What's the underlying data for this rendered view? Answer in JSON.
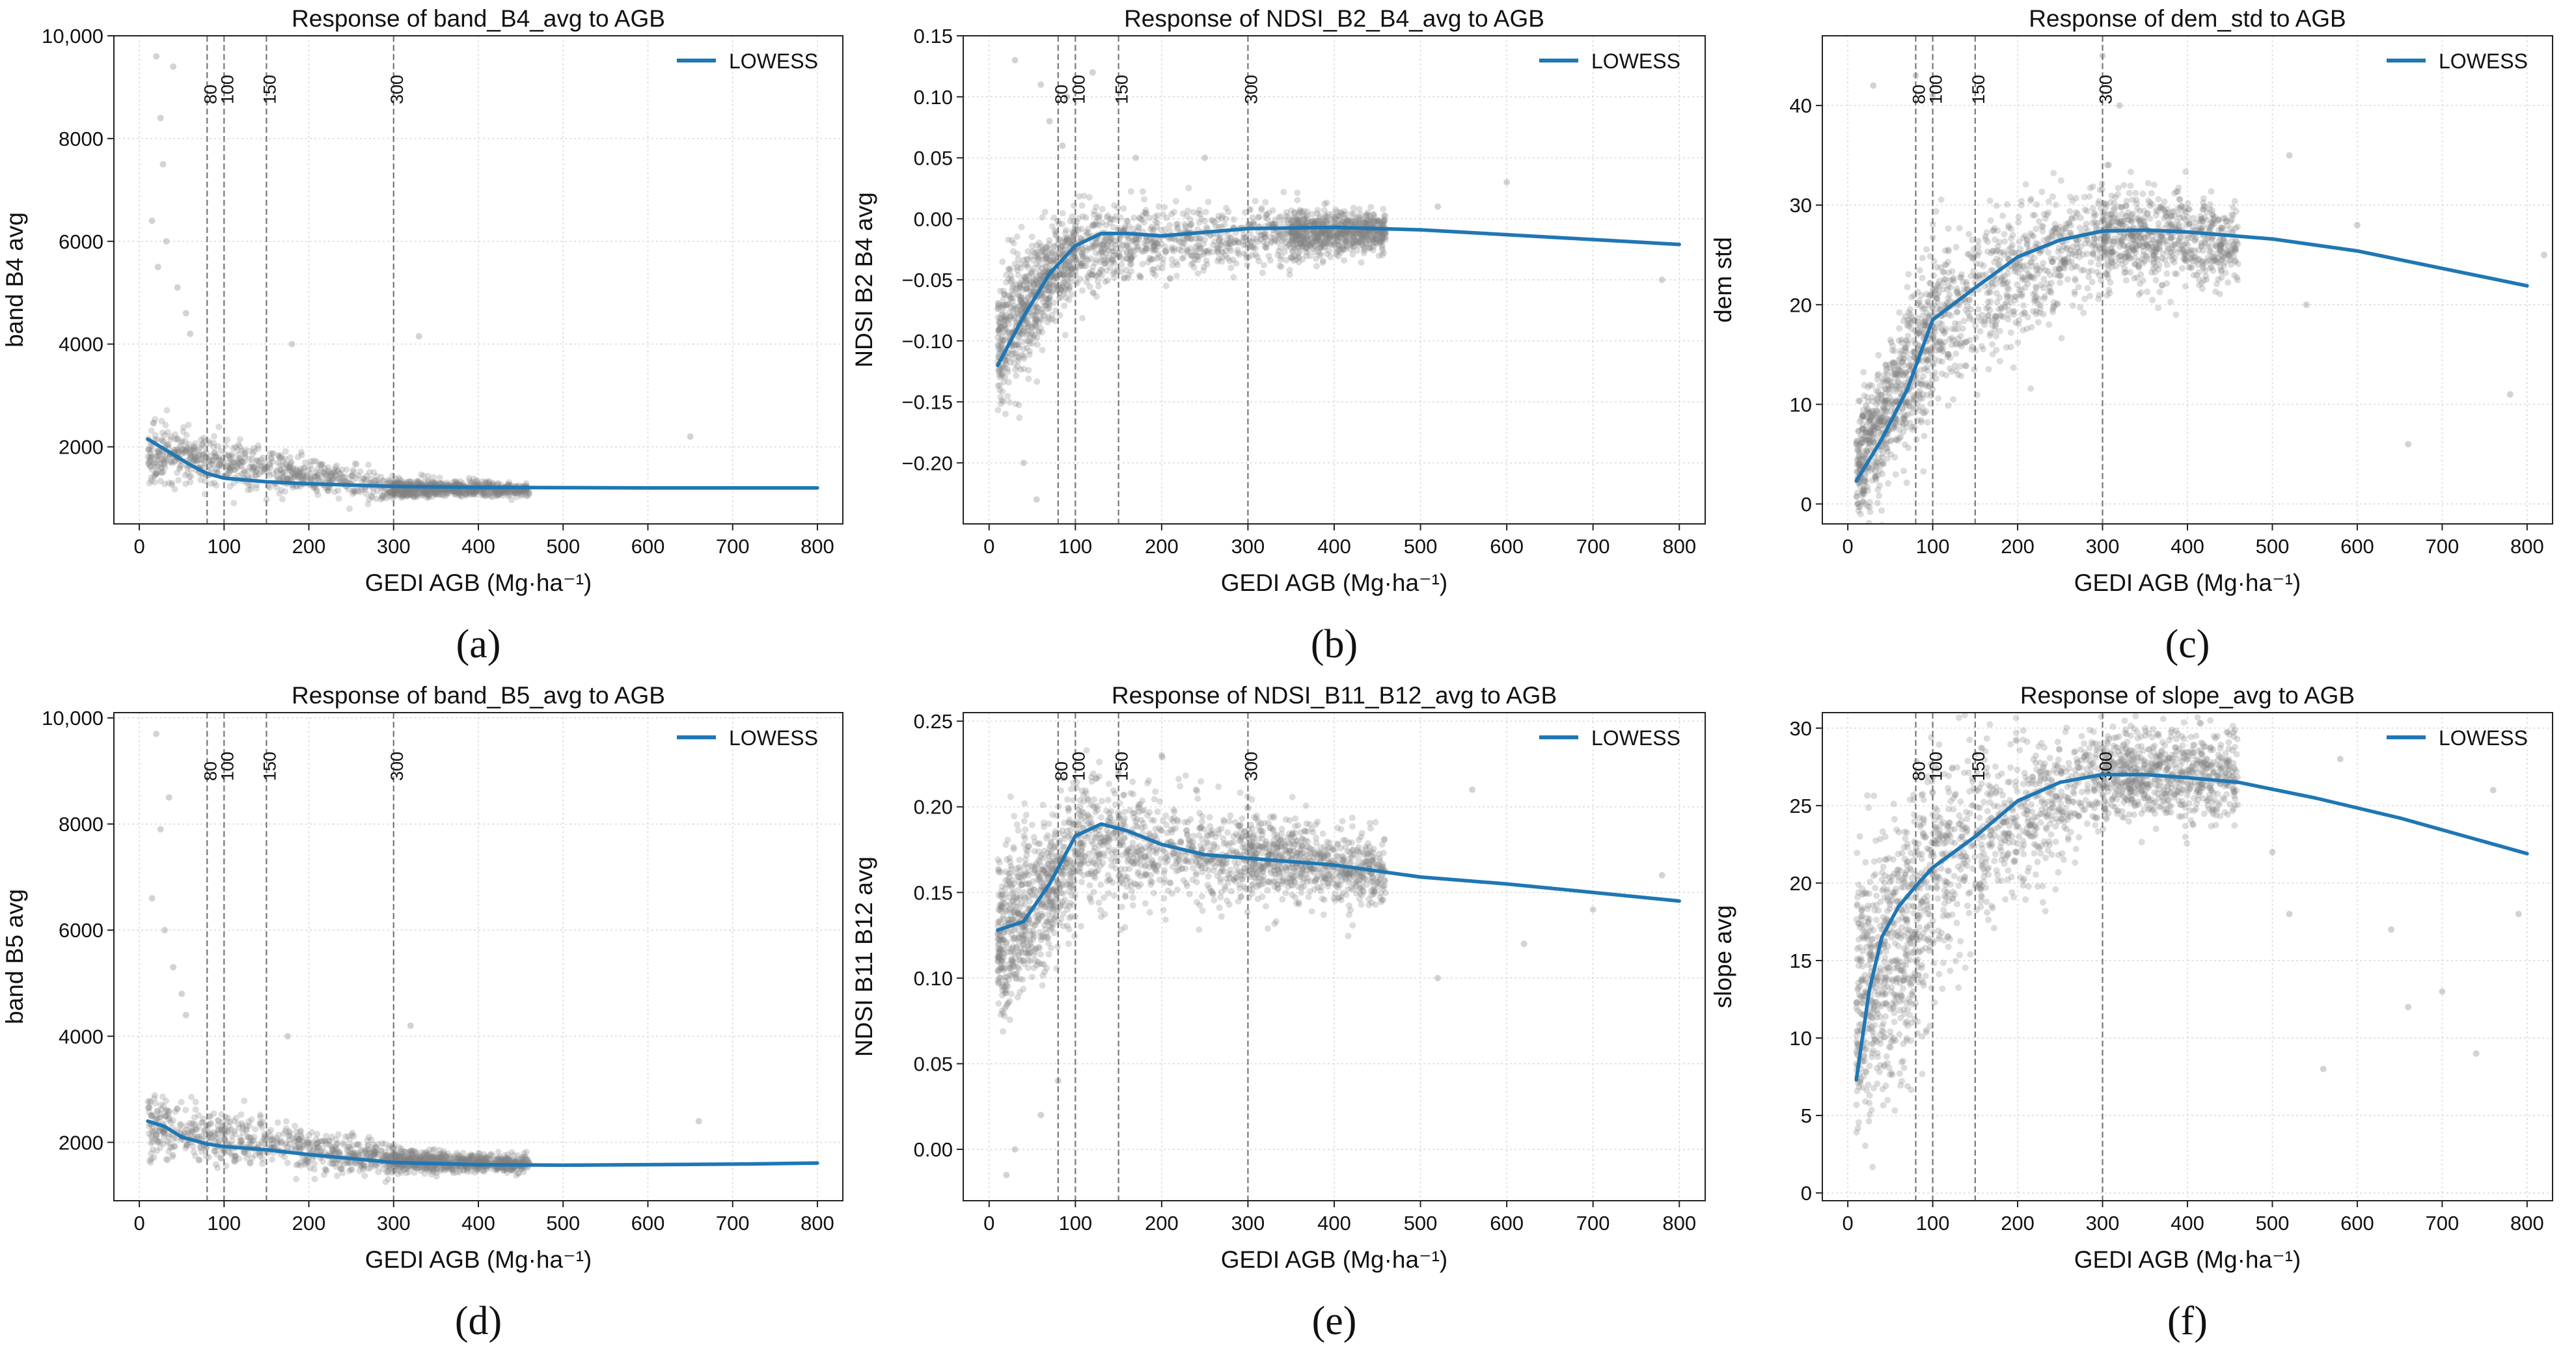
{
  "colors": {
    "points": "#808080",
    "lowess": "#1f77b4",
    "grid": "#d9d9d9",
    "vline": "#777777",
    "axis": "#222222"
  },
  "chart_data": [
    {
      "id": "a",
      "type": "scatter",
      "subfig_label": "(a)",
      "title": "Response of band_B4_avg to AGB",
      "xlabel": "GEDI AGB (Mg·ha⁻¹)",
      "ylabel": "band B4 avg",
      "xlim": [
        -30,
        830
      ],
      "ylim": [
        500,
        10000
      ],
      "xticks": [
        0,
        100,
        200,
        300,
        400,
        500,
        600,
        700,
        800
      ],
      "xtick_labels": [
        "0",
        "100",
        "200",
        "300",
        "400",
        "500",
        "600",
        "700",
        "800"
      ],
      "yticks": [
        2000,
        4000,
        6000,
        8000,
        10000
      ],
      "ytick_labels": [
        "2000",
        "4000",
        "6000",
        "8000",
        "10,000"
      ],
      "grid": true,
      "legend": {
        "position": "top-right",
        "entries": [
          "LOWESS"
        ]
      },
      "reference_lines": {
        "x": [
          80,
          100,
          150,
          300
        ],
        "labels": [
          "80",
          "100",
          "150",
          "300"
        ]
      },
      "lowess": {
        "x": [
          10,
          30,
          60,
          80,
          100,
          150,
          200,
          300,
          400,
          600,
          800
        ],
        "y": [
          2150,
          1950,
          1650,
          1480,
          1390,
          1320,
          1280,
          1230,
          1210,
          1200,
          1200
        ]
      },
      "point_cloud": [
        {
          "x_range": [
            10,
            300
          ],
          "y_center": [
            1900,
            1200
          ],
          "y_spread": [
            550,
            250
          ]
        },
        {
          "x_range": [
            300,
            460
          ],
          "y_center": [
            1200,
            1160
          ],
          "y_spread": [
            180,
            120
          ]
        }
      ],
      "outliers": [
        [
          20,
          9600
        ],
        [
          40,
          9400
        ],
        [
          25,
          8400
        ],
        [
          28,
          7500
        ],
        [
          15,
          6400
        ],
        [
          32,
          6000
        ],
        [
          22,
          5500
        ],
        [
          45,
          5100
        ],
        [
          55,
          4600
        ],
        [
          60,
          4200
        ],
        [
          180,
          4000
        ],
        [
          330,
          4150
        ],
        [
          650,
          2200
        ]
      ]
    },
    {
      "id": "b",
      "type": "scatter",
      "subfig_label": "(b)",
      "title": "Response of NDSI_B2_B4_avg to AGB",
      "xlabel": "GEDI AGB (Mg·ha⁻¹)",
      "ylabel": "NDSI B2 B4 avg",
      "xlim": [
        -30,
        830
      ],
      "ylim": [
        -0.25,
        0.15
      ],
      "xticks": [
        0,
        100,
        200,
        300,
        400,
        500,
        600,
        700,
        800
      ],
      "xtick_labels": [
        "0",
        "100",
        "200",
        "300",
        "400",
        "500",
        "600",
        "700",
        "800"
      ],
      "yticks": [
        -0.2,
        -0.15,
        -0.1,
        -0.05,
        0.0,
        0.05,
        0.1,
        0.15
      ],
      "ytick_labels": [
        "−0.20",
        "−0.15",
        "−0.10",
        "−0.05",
        "0.00",
        "0.05",
        "0.10",
        "0.15"
      ],
      "grid": true,
      "legend": {
        "position": "top-right",
        "entries": [
          "LOWESS"
        ]
      },
      "reference_lines": {
        "x": [
          80,
          100,
          150,
          300
        ],
        "labels": [
          "80",
          "100",
          "150",
          "300"
        ]
      },
      "lowess": {
        "x": [
          10,
          40,
          70,
          100,
          130,
          160,
          200,
          250,
          300,
          400,
          500,
          800
        ],
        "y": [
          -0.12,
          -0.08,
          -0.045,
          -0.022,
          -0.012,
          -0.012,
          -0.014,
          -0.011,
          -0.008,
          -0.007,
          -0.009,
          -0.021
        ]
      },
      "point_cloud": [
        {
          "x_range": [
            10,
            100
          ],
          "y_center": [
            -0.1,
            -0.025
          ],
          "y_spread": [
            0.06,
            0.035
          ]
        },
        {
          "x_range": [
            100,
            350
          ],
          "y_center": [
            -0.025,
            -0.012
          ],
          "y_spread": [
            0.035,
            0.025
          ]
        },
        {
          "x_range": [
            350,
            460
          ],
          "y_center": [
            -0.012,
            -0.01
          ],
          "y_spread": [
            0.02,
            0.015
          ]
        }
      ],
      "outliers": [
        [
          30,
          0.13
        ],
        [
          60,
          0.11
        ],
        [
          90,
          0.1
        ],
        [
          120,
          0.12
        ],
        [
          70,
          0.08
        ],
        [
          85,
          0.06
        ],
        [
          170,
          0.05
        ],
        [
          250,
          0.05
        ],
        [
          40,
          -0.2
        ],
        [
          55,
          -0.23
        ],
        [
          520,
          0.01
        ],
        [
          600,
          0.03
        ],
        [
          780,
          -0.05
        ]
      ]
    },
    {
      "id": "c",
      "type": "scatter",
      "subfig_label": "(c)",
      "title": "Response of dem_std to AGB",
      "xlabel": "GEDI AGB (Mg·ha⁻¹)",
      "ylabel": "dem std",
      "xlim": [
        -30,
        830
      ],
      "ylim": [
        -2,
        47
      ],
      "xticks": [
        0,
        100,
        200,
        300,
        400,
        500,
        600,
        700,
        800
      ],
      "xtick_labels": [
        "0",
        "100",
        "200",
        "300",
        "400",
        "500",
        "600",
        "700",
        "800"
      ],
      "yticks": [
        0,
        10,
        20,
        30,
        40
      ],
      "ytick_labels": [
        "0",
        "10",
        "20",
        "30",
        "40"
      ],
      "grid": true,
      "legend": {
        "position": "top-right",
        "entries": [
          "LOWESS"
        ]
      },
      "reference_lines": {
        "x": [
          80,
          100,
          150,
          300
        ],
        "labels": [
          "80",
          "100",
          "150",
          "300"
        ]
      },
      "lowess": {
        "x": [
          10,
          40,
          70,
          100,
          150,
          200,
          250,
          300,
          350,
          400,
          500,
          600,
          800
        ],
        "y": [
          2.3,
          6.5,
          11.5,
          18.5,
          21.7,
          24.8,
          26.5,
          27.4,
          27.5,
          27.3,
          26.6,
          25.4,
          21.9
        ]
      },
      "point_cloud": [
        {
          "x_range": [
            10,
            100
          ],
          "y_center": [
            4,
            17
          ],
          "y_spread": [
            5,
            9
          ]
        },
        {
          "x_range": [
            100,
            300
          ],
          "y_center": [
            19,
            27
          ],
          "y_spread": [
            9,
            5
          ]
        },
        {
          "x_range": [
            300,
            460
          ],
          "y_center": [
            27,
            26
          ],
          "y_spread": [
            5,
            4
          ]
        }
      ],
      "outliers": [
        [
          30,
          42
        ],
        [
          80,
          43
        ],
        [
          100,
          41
        ],
        [
          300,
          45
        ],
        [
          320,
          40
        ],
        [
          520,
          35
        ],
        [
          540,
          20
        ],
        [
          600,
          28
        ],
        [
          660,
          6
        ],
        [
          780,
          11
        ],
        [
          820,
          25
        ]
      ]
    },
    {
      "id": "d",
      "type": "scatter",
      "subfig_label": "(d)",
      "title": "Response of band_B5_avg to AGB",
      "xlabel": "GEDI AGB (Mg·ha⁻¹)",
      "ylabel": "band B5 avg",
      "xlim": [
        -30,
        830
      ],
      "ylim": [
        900,
        10100
      ],
      "xticks": [
        0,
        100,
        200,
        300,
        400,
        500,
        600,
        700,
        800
      ],
      "xtick_labels": [
        "0",
        "100",
        "200",
        "300",
        "400",
        "500",
        "600",
        "700",
        "800"
      ],
      "yticks": [
        2000,
        4000,
        6000,
        8000,
        10000
      ],
      "ytick_labels": [
        "2000",
        "4000",
        "6000",
        "8000",
        "10,000"
      ],
      "grid": true,
      "legend": {
        "position": "top-right",
        "entries": [
          "LOWESS"
        ]
      },
      "reference_lines": {
        "x": [
          80,
          100,
          150,
          300
        ],
        "labels": [
          "80",
          "100",
          "150",
          "300"
        ]
      },
      "lowess": {
        "x": [
          10,
          30,
          50,
          80,
          100,
          150,
          200,
          300,
          400,
          500,
          600,
          700,
          800
        ],
        "y": [
          2400,
          2300,
          2100,
          1970,
          1920,
          1860,
          1770,
          1620,
          1580,
          1570,
          1580,
          1590,
          1610
        ]
      },
      "point_cloud": [
        {
          "x_range": [
            10,
            300
          ],
          "y_center": [
            2300,
            1650
          ],
          "y_spread": [
            550,
            300
          ]
        },
        {
          "x_range": [
            300,
            460
          ],
          "y_center": [
            1650,
            1580
          ],
          "y_spread": [
            220,
            150
          ]
        }
      ],
      "outliers": [
        [
          20,
          9700
        ],
        [
          35,
          8500
        ],
        [
          25,
          7900
        ],
        [
          15,
          6600
        ],
        [
          30,
          6000
        ],
        [
          40,
          5300
        ],
        [
          50,
          4800
        ],
        [
          55,
          4400
        ],
        [
          175,
          4000
        ],
        [
          320,
          4200
        ],
        [
          660,
          2400
        ]
      ]
    },
    {
      "id": "e",
      "type": "scatter",
      "subfig_label": "(e)",
      "title": "Response of NDSI_B11_B12_avg to AGB",
      "xlabel": "GEDI AGB (Mg·ha⁻¹)",
      "ylabel": "NDSI B11 B12 avg",
      "xlim": [
        -30,
        830
      ],
      "ylim": [
        -0.03,
        0.255
      ],
      "xticks": [
        0,
        100,
        200,
        300,
        400,
        500,
        600,
        700,
        800
      ],
      "xtick_labels": [
        "0",
        "100",
        "200",
        "300",
        "400",
        "500",
        "600",
        "700",
        "800"
      ],
      "yticks": [
        0.0,
        0.05,
        0.1,
        0.15,
        0.2,
        0.25
      ],
      "ytick_labels": [
        "0.00",
        "0.05",
        "0.10",
        "0.15",
        "0.20",
        "0.25"
      ],
      "grid": true,
      "legend": {
        "position": "top-right",
        "entries": [
          "LOWESS"
        ]
      },
      "reference_lines": {
        "x": [
          80,
          100,
          150,
          300
        ],
        "labels": [
          "80",
          "100",
          "150",
          "300"
        ]
      },
      "lowess": {
        "x": [
          10,
          40,
          70,
          100,
          130,
          160,
          200,
          250,
          300,
          400,
          500,
          600,
          800
        ],
        "y": [
          0.128,
          0.133,
          0.155,
          0.183,
          0.19,
          0.186,
          0.178,
          0.172,
          0.17,
          0.166,
          0.159,
          0.155,
          0.145
        ]
      },
      "point_cloud": [
        {
          "x_range": [
            10,
            100
          ],
          "y_center": [
            0.12,
            0.17
          ],
          "y_spread": [
            0.05,
            0.04
          ]
        },
        {
          "x_range": [
            100,
            300
          ],
          "y_center": [
            0.18,
            0.17
          ],
          "y_spread": [
            0.035,
            0.03
          ]
        },
        {
          "x_range": [
            300,
            460
          ],
          "y_center": [
            0.17,
            0.162
          ],
          "y_spread": [
            0.025,
            0.02
          ]
        }
      ],
      "outliers": [
        [
          20,
          -0.015
        ],
        [
          30,
          0.0
        ],
        [
          60,
          0.02
        ],
        [
          80,
          0.04
        ],
        [
          150,
          0.22
        ],
        [
          200,
          0.23
        ],
        [
          240,
          0.21
        ],
        [
          520,
          0.1
        ],
        [
          560,
          0.21
        ],
        [
          620,
          0.12
        ],
        [
          700,
          0.14
        ],
        [
          780,
          0.16
        ]
      ]
    },
    {
      "id": "f",
      "type": "scatter",
      "subfig_label": "(f)",
      "title": "Response of slope_avg to AGB",
      "xlabel": "GEDI AGB (Mg·ha⁻¹)",
      "ylabel": "slope avg",
      "xlim": [
        -30,
        830
      ],
      "ylim": [
        -0.5,
        31
      ],
      "xticks": [
        0,
        100,
        200,
        300,
        400,
        500,
        600,
        700,
        800
      ],
      "xtick_labels": [
        "0",
        "100",
        "200",
        "300",
        "400",
        "500",
        "600",
        "700",
        "800"
      ],
      "yticks": [
        0,
        5,
        10,
        15,
        20,
        25,
        30
      ],
      "ytick_labels": [
        "0",
        "5",
        "10",
        "15",
        "20",
        "25",
        "30"
      ],
      "grid": true,
      "legend": {
        "position": "top-right",
        "entries": [
          "LOWESS"
        ]
      },
      "reference_lines": {
        "x": [
          80,
          100,
          150,
          300
        ],
        "labels": [
          "80",
          "100",
          "150",
          "300"
        ]
      },
      "lowess": {
        "x": [
          10,
          25,
          40,
          60,
          80,
          100,
          150,
          200,
          250,
          300,
          350,
          400,
          460,
          550,
          650,
          800
        ],
        "y": [
          7.3,
          13,
          16.5,
          18.5,
          19.8,
          21,
          23,
          25.3,
          26.5,
          27,
          27,
          26.8,
          26.5,
          25.5,
          24.2,
          21.9
        ]
      },
      "point_cloud": [
        {
          "x_range": [
            10,
            100
          ],
          "y_center": [
            12,
            20
          ],
          "y_spread": [
            9,
            8
          ]
        },
        {
          "x_range": [
            100,
            300
          ],
          "y_center": [
            21,
            27
          ],
          "y_spread": [
            7,
            3.5
          ]
        },
        {
          "x_range": [
            300,
            460
          ],
          "y_center": [
            27,
            27
          ],
          "y_spread": [
            3,
            3
          ]
        }
      ],
      "outliers": [
        [
          500,
          22
        ],
        [
          520,
          18
        ],
        [
          580,
          28
        ],
        [
          640,
          17
        ],
        [
          660,
          12
        ],
        [
          700,
          13
        ],
        [
          740,
          9
        ],
        [
          760,
          26
        ],
        [
          790,
          18
        ],
        [
          560,
          8
        ]
      ]
    }
  ]
}
